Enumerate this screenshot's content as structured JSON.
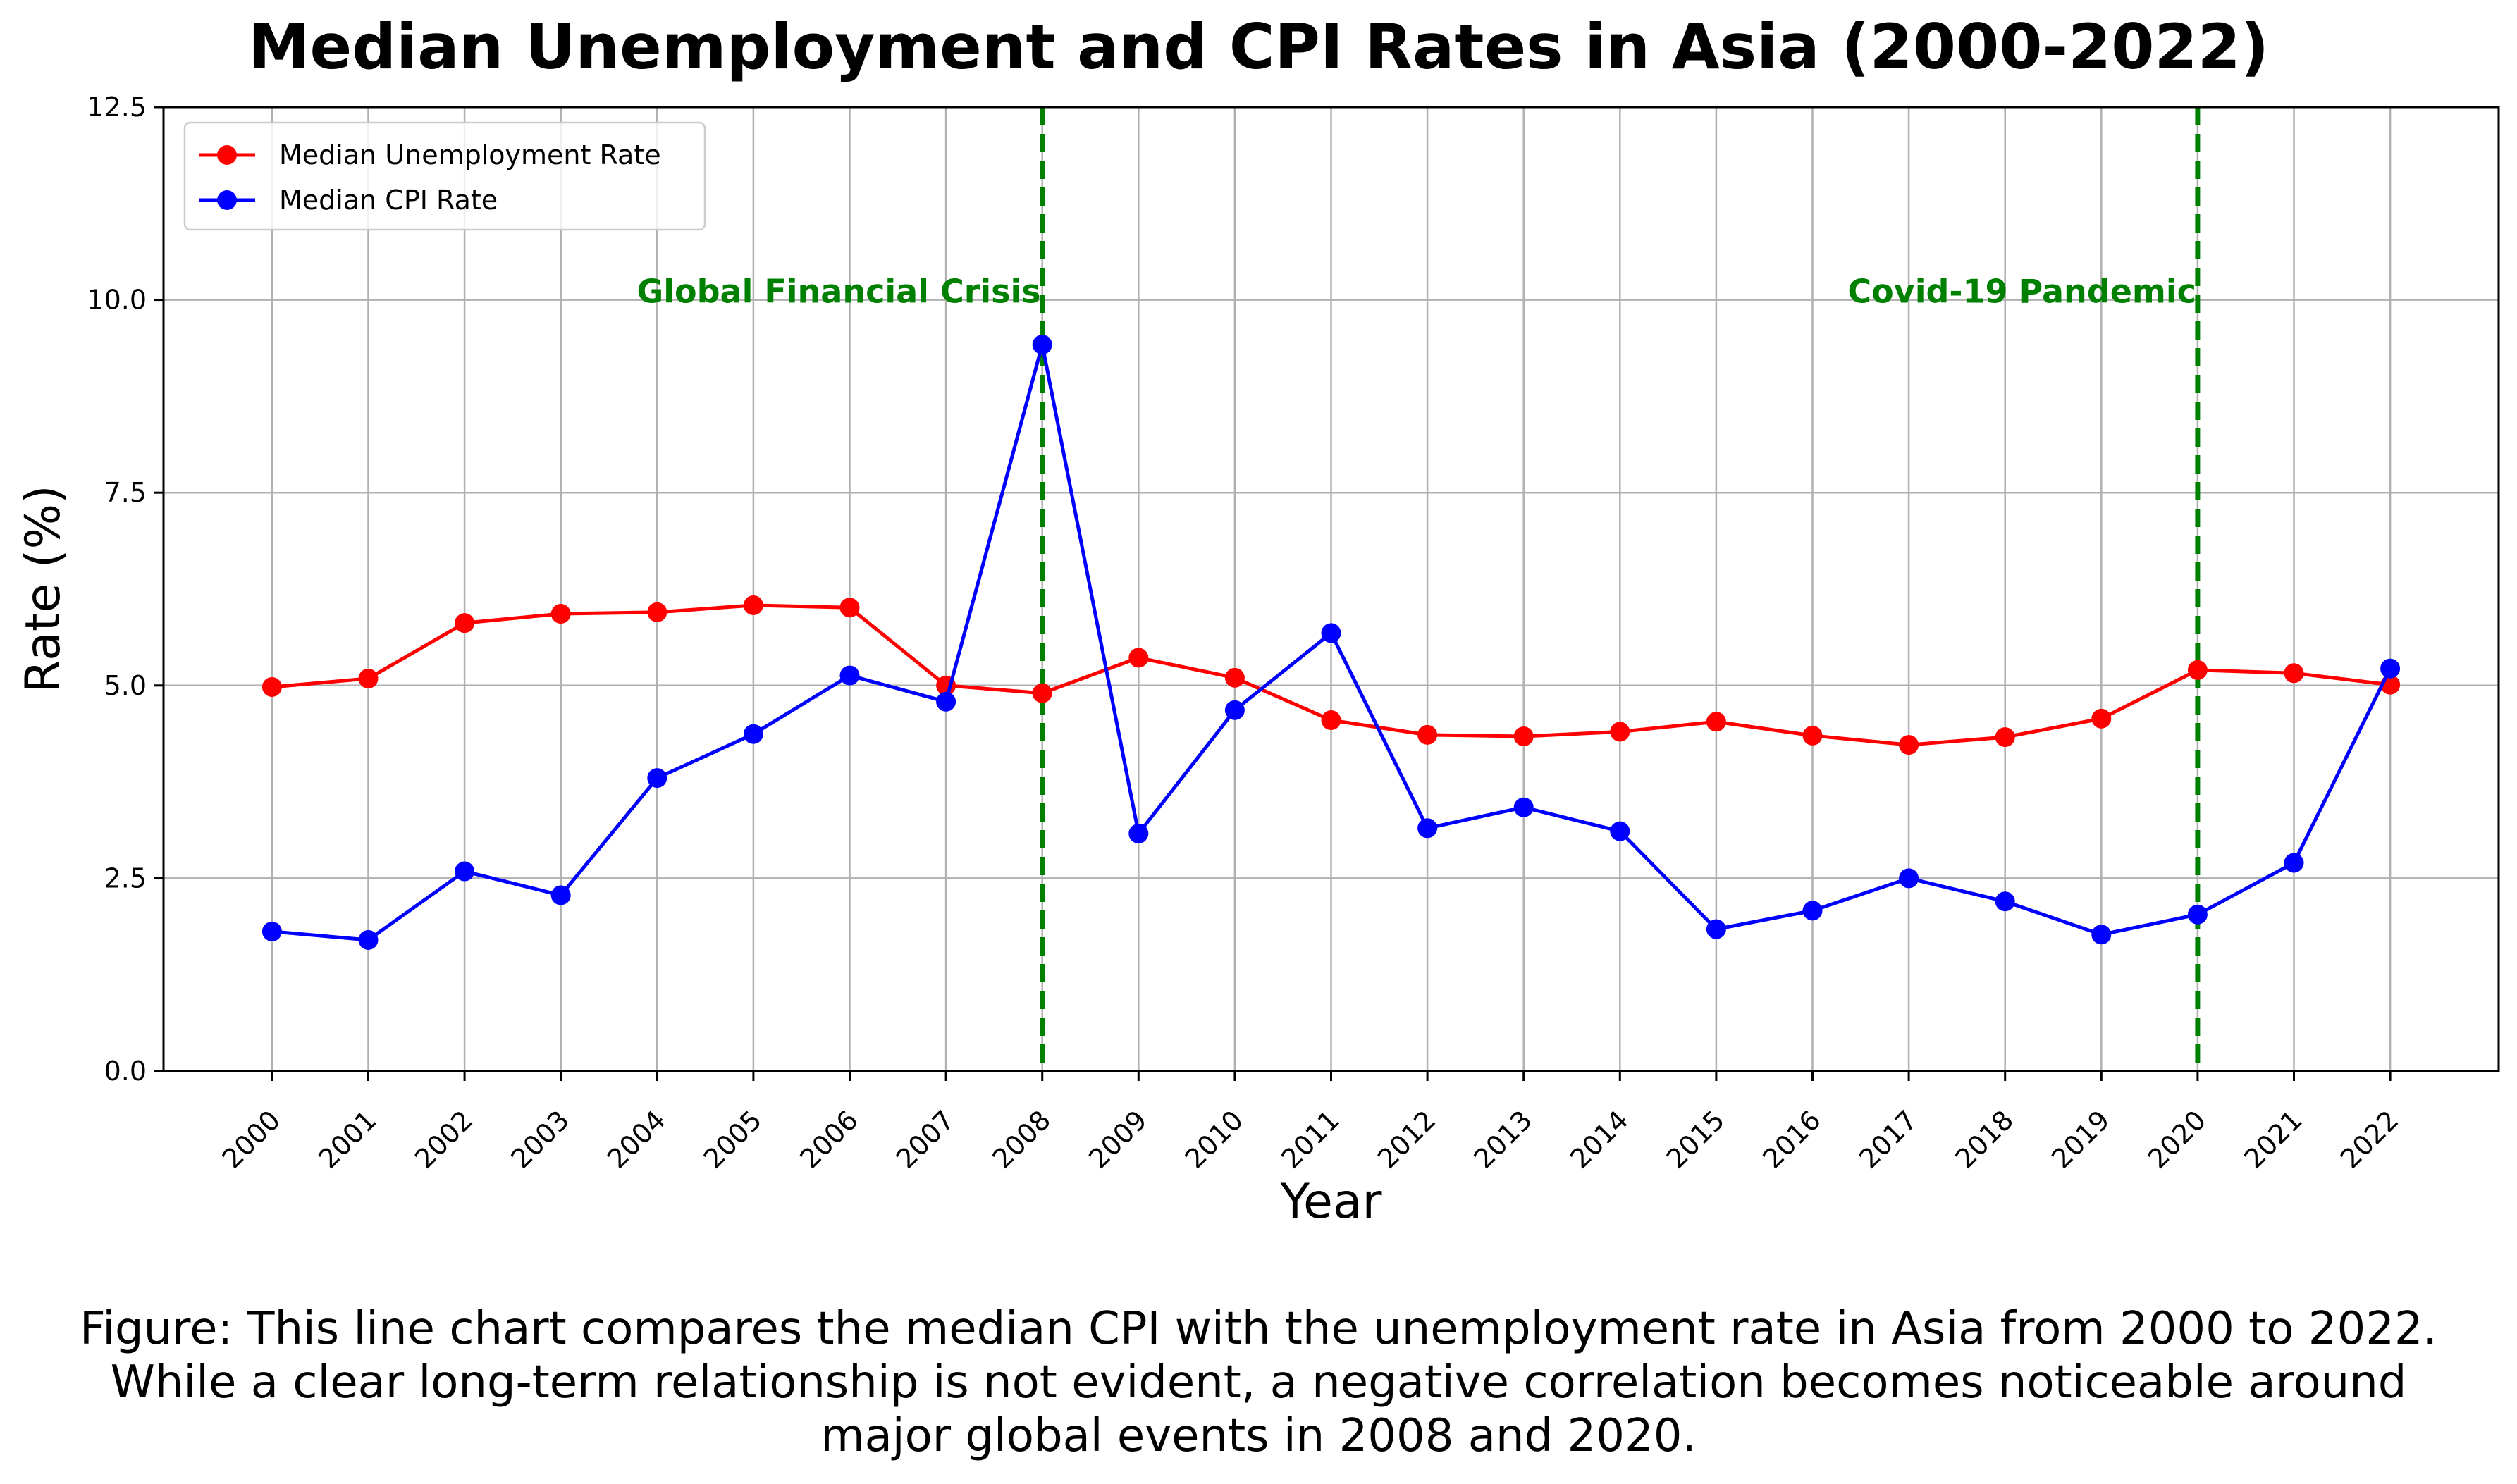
{
  "chart_data": {
    "type": "line",
    "title": "Median Unemployment and CPI Rates in Asia (2000-2022)",
    "xlabel": "Year",
    "ylabel": "Rate (%)",
    "ylim": [
      0,
      12.5
    ],
    "yticks": [
      "0.0",
      "2.5",
      "5.0",
      "7.5",
      "10.0",
      "12.5"
    ],
    "grid": true,
    "legend_position": "top-left",
    "x": [
      2000,
      2001,
      2002,
      2003,
      2004,
      2005,
      2006,
      2007,
      2008,
      2009,
      2010,
      2011,
      2012,
      2013,
      2014,
      2015,
      2016,
      2017,
      2018,
      2019,
      2020,
      2021,
      2022
    ],
    "series": [
      {
        "name": "Median Unemployment Rate",
        "color": "#ff0000",
        "values": [
          4.98,
          5.09,
          5.81,
          5.93,
          5.95,
          6.04,
          6.01,
          5.0,
          4.9,
          5.36,
          5.1,
          4.55,
          4.36,
          4.34,
          4.4,
          4.53,
          4.35,
          4.23,
          4.33,
          4.57,
          5.2,
          5.16,
          5.01
        ]
      },
      {
        "name": "Median CPI Rate",
        "color": "#0000ff",
        "values": [
          1.81,
          1.7,
          2.59,
          2.28,
          3.8,
          4.37,
          5.13,
          4.79,
          9.42,
          3.08,
          4.68,
          5.68,
          3.15,
          3.42,
          3.11,
          1.84,
          2.08,
          2.5,
          2.2,
          1.77,
          2.03,
          2.7,
          5.22
        ]
      }
    ],
    "annotations": [
      {
        "year": 2008,
        "label": "Global Financial Crisis",
        "color": "#008000"
      },
      {
        "year": 2020,
        "label": "Covid-19 Pandemic",
        "color": "#008000"
      }
    ]
  },
  "caption": [
    "Figure: This line chart compares the median CPI with the unemployment rate in Asia from 2000 to 2022.",
    "While a clear long-term relationship is not evident, a negative correlation becomes noticeable around",
    "major global events in 2008 and 2020."
  ]
}
